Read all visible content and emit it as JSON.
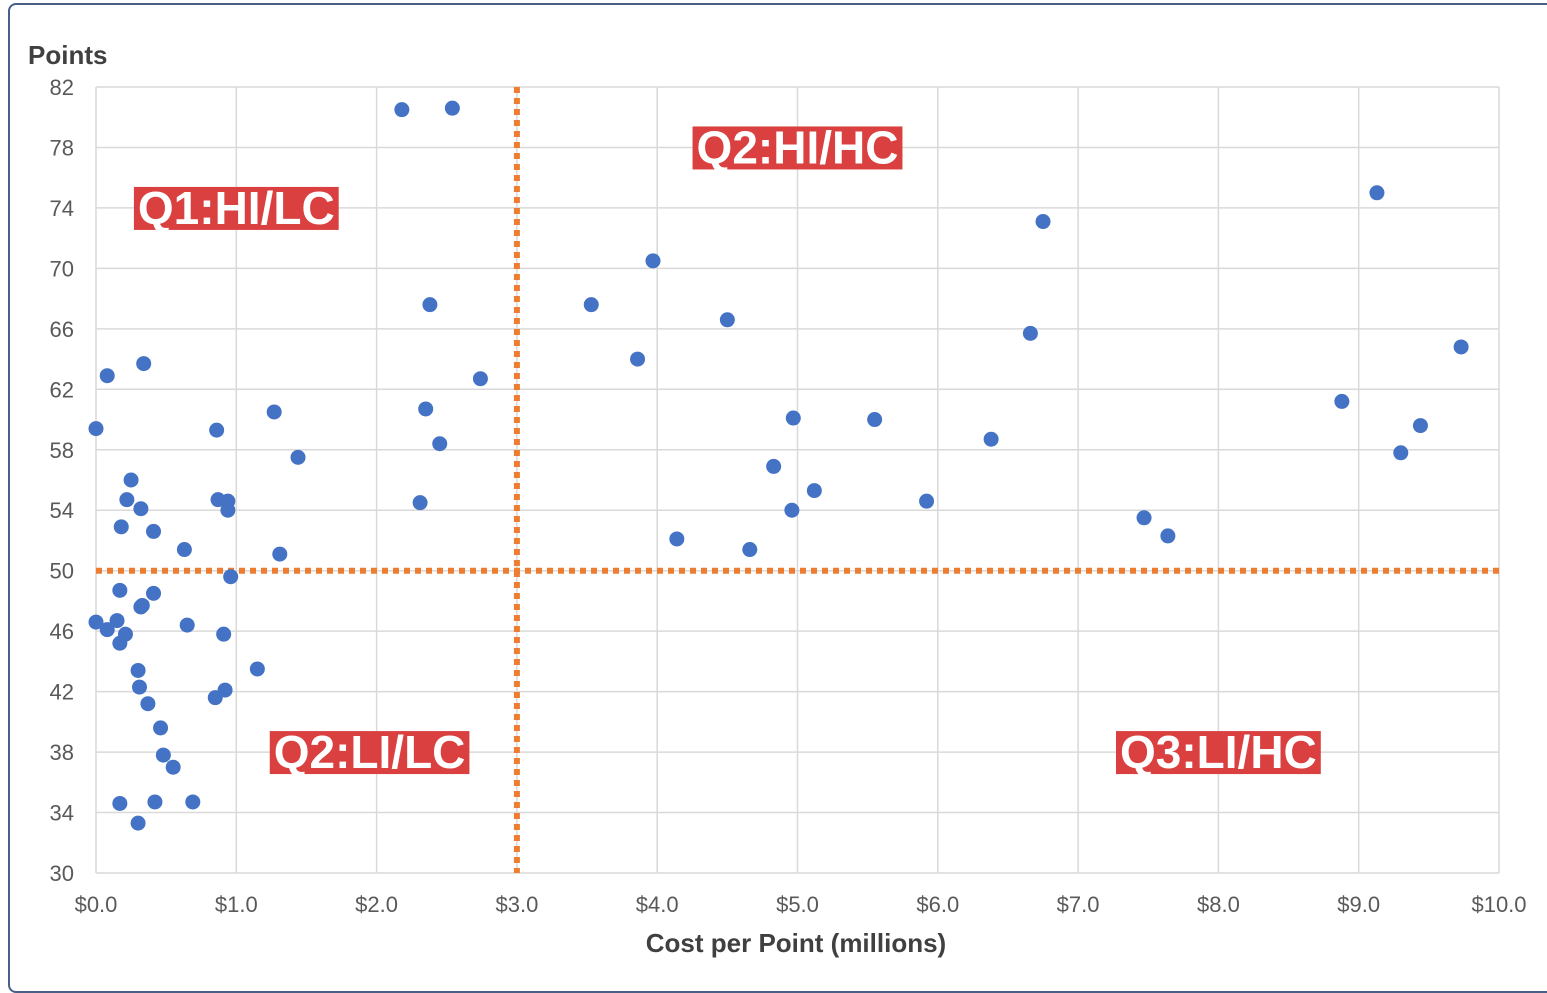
{
  "chart_data": {
    "type": "scatter",
    "title": "",
    "xlabel": "Cost per Point (millions)",
    "ylabel": "Points",
    "xlim": [
      0,
      10
    ],
    "ylim": [
      30,
      82
    ],
    "x_ticks": [
      "$0.0",
      "$1.0",
      "$2.0",
      "$3.0",
      "$4.0",
      "$5.0",
      "$6.0",
      "$7.0",
      "$8.0",
      "$9.0",
      "$10.0"
    ],
    "y_ticks": [
      "82",
      "78",
      "74",
      "70",
      "66",
      "62",
      "58",
      "54",
      "50",
      "46",
      "42",
      "38",
      "34",
      "30"
    ],
    "grid": true,
    "point_color": "#4472c4",
    "reference_lines": {
      "x": 3.0,
      "y": 50,
      "color": "#ed7d31",
      "style": "dotted"
    },
    "quadrant_labels": [
      {
        "text": "Q1:HI/LC",
        "x": 1.0,
        "y": 74
      },
      {
        "text": "Q2:HI/HC",
        "x": 5.0,
        "y": 78
      },
      {
        "text": "Q2:LI/LC",
        "x": 1.95,
        "y": 38
      },
      {
        "text": "Q3:LI/HC",
        "x": 8.0,
        "y": 38
      }
    ],
    "quadrant_label_color": "#d9403f",
    "points": [
      [
        2.18,
        80.5
      ],
      [
        2.54,
        80.6
      ],
      [
        2.38,
        67.6
      ],
      [
        2.74,
        62.7
      ],
      [
        2.35,
        60.7
      ],
      [
        2.45,
        58.4
      ],
      [
        2.31,
        54.5
      ],
      [
        0.08,
        62.9
      ],
      [
        0.34,
        63.7
      ],
      [
        0.0,
        59.4
      ],
      [
        0.86,
        59.3
      ],
      [
        1.27,
        60.5
      ],
      [
        1.44,
        57.5
      ],
      [
        0.25,
        56.0
      ],
      [
        0.22,
        54.7
      ],
      [
        0.32,
        54.1
      ],
      [
        0.87,
        54.7
      ],
      [
        0.94,
        54.6
      ],
      [
        0.94,
        54.0
      ],
      [
        0.18,
        52.9
      ],
      [
        0.41,
        52.6
      ],
      [
        0.63,
        51.4
      ],
      [
        1.31,
        51.1
      ],
      [
        0.96,
        49.6
      ],
      [
        0.17,
        48.7
      ],
      [
        0.41,
        48.5
      ],
      [
        0.32,
        47.6
      ],
      [
        0.33,
        47.7
      ],
      [
        0.0,
        46.6
      ],
      [
        0.08,
        46.1
      ],
      [
        0.15,
        46.7
      ],
      [
        0.21,
        45.8
      ],
      [
        0.17,
        45.2
      ],
      [
        0.65,
        46.4
      ],
      [
        0.91,
        45.8
      ],
      [
        0.3,
        43.4
      ],
      [
        0.31,
        42.3
      ],
      [
        0.37,
        41.2
      ],
      [
        1.15,
        43.5
      ],
      [
        0.92,
        42.1
      ],
      [
        0.85,
        41.6
      ],
      [
        0.46,
        39.6
      ],
      [
        0.48,
        37.8
      ],
      [
        0.55,
        37.0
      ],
      [
        0.17,
        34.6
      ],
      [
        0.42,
        34.7
      ],
      [
        0.69,
        34.7
      ],
      [
        0.3,
        33.3
      ],
      [
        3.53,
        67.6
      ],
      [
        3.97,
        70.5
      ],
      [
        3.86,
        64.0
      ],
      [
        4.5,
        66.6
      ],
      [
        4.14,
        52.1
      ],
      [
        4.66,
        51.4
      ],
      [
        4.83,
        56.9
      ],
      [
        4.97,
        60.1
      ],
      [
        4.96,
        54.0
      ],
      [
        5.12,
        55.3
      ],
      [
        5.55,
        60.0
      ],
      [
        5.92,
        54.6
      ],
      [
        6.38,
        58.7
      ],
      [
        6.75,
        73.1
      ],
      [
        6.66,
        65.7
      ],
      [
        7.47,
        53.5
      ],
      [
        7.64,
        52.3
      ],
      [
        8.88,
        61.2
      ],
      [
        9.13,
        75.0
      ],
      [
        9.3,
        57.8
      ],
      [
        9.44,
        59.6
      ],
      [
        9.73,
        64.8
      ]
    ]
  }
}
